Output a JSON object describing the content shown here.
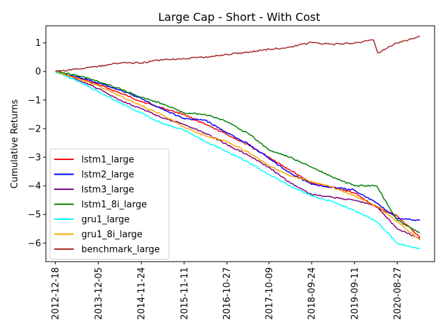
{
  "chart_data": {
    "type": "line",
    "title": "Large Cap - Short - With Cost",
    "xlabel": "",
    "ylabel": "Cumulative Returns",
    "x_tick_labels": [
      "2012-12-18",
      "2013-12-05",
      "2014-11-24",
      "2015-11-11",
      "2016-10-27",
      "2017-10-09",
      "2018-09-24",
      "2019-09-11",
      "2020-08-27"
    ],
    "x_range": [
      "2012-10-01",
      "2021-06-30"
    ],
    "ylim": [
      -6.65,
      1.6
    ],
    "y_ticks": [
      -6,
      -5,
      -4,
      -3,
      -2,
      -1,
      0,
      1
    ],
    "grid": false,
    "legend_position": "lower-left",
    "series": [
      {
        "name": "lstm1_large",
        "color": "#ff0000",
        "x": [
          "2012-12-18",
          "2013-06-01",
          "2013-12-05",
          "2014-06-01",
          "2014-11-24",
          "2015-06-01",
          "2015-11-11",
          "2016-05-01",
          "2016-10-27",
          "2017-05-01",
          "2017-10-09",
          "2018-04-01",
          "2018-09-24",
          "2019-03-15",
          "2019-09-11",
          "2020-03-10",
          "2020-08-27",
          "2021-03-01"
        ],
        "y": [
          0.0,
          -0.2,
          -0.45,
          -0.75,
          -1.05,
          -1.3,
          -1.5,
          -1.85,
          -2.2,
          -2.6,
          -3.0,
          -3.45,
          -3.9,
          -4.05,
          -4.25,
          -4.75,
          -5.05,
          -5.8
        ]
      },
      {
        "name": "lstm2_large",
        "color": "#0000ff",
        "x": [
          "2012-12-18",
          "2013-06-01",
          "2013-12-05",
          "2014-06-01",
          "2014-11-24",
          "2015-06-01",
          "2015-11-11",
          "2016-05-01",
          "2016-10-27",
          "2017-05-01",
          "2017-10-09",
          "2018-04-01",
          "2018-09-24",
          "2019-03-15",
          "2019-09-11",
          "2020-03-10",
          "2020-08-27",
          "2021-03-01"
        ],
        "y": [
          0.0,
          -0.18,
          -0.4,
          -0.65,
          -0.95,
          -1.35,
          -1.65,
          -1.7,
          -2.15,
          -2.55,
          -3.05,
          -3.55,
          -3.95,
          -4.05,
          -4.15,
          -4.6,
          -5.15,
          -5.2
        ]
      },
      {
        "name": "lstm3_large",
        "color": "#800080",
        "x": [
          "2012-12-18",
          "2013-06-01",
          "2013-12-05",
          "2014-06-01",
          "2014-11-24",
          "2015-06-01",
          "2015-11-11",
          "2016-05-01",
          "2016-10-27",
          "2017-05-01",
          "2017-10-09",
          "2018-04-01",
          "2018-09-24",
          "2019-03-15",
          "2019-09-11",
          "2020-03-10",
          "2020-08-27",
          "2021-03-01"
        ],
        "y": [
          0.0,
          -0.25,
          -0.6,
          -1.0,
          -1.3,
          -1.65,
          -1.85,
          -2.15,
          -2.55,
          -2.95,
          -3.35,
          -3.9,
          -4.3,
          -4.4,
          -4.5,
          -4.7,
          -5.5,
          -5.85
        ]
      },
      {
        "name": "lstm1_8i_large",
        "color": "#008000",
        "x": [
          "2012-12-18",
          "2013-06-01",
          "2013-12-05",
          "2014-06-01",
          "2014-11-24",
          "2015-06-01",
          "2015-11-11",
          "2016-05-01",
          "2016-10-27",
          "2017-05-01",
          "2017-10-09",
          "2018-04-01",
          "2018-09-24",
          "2019-03-15",
          "2019-09-11",
          "2020-03-10",
          "2020-08-27",
          "2021-03-01"
        ],
        "y": [
          0.0,
          -0.12,
          -0.35,
          -0.6,
          -0.9,
          -1.15,
          -1.45,
          -1.5,
          -1.75,
          -2.2,
          -2.75,
          -3.0,
          -3.35,
          -3.7,
          -4.0,
          -4.0,
          -5.2,
          -5.65
        ]
      },
      {
        "name": "gru1_large",
        "color": "#00ffff",
        "x": [
          "2012-12-18",
          "2013-06-01",
          "2013-12-05",
          "2014-06-01",
          "2014-11-24",
          "2015-06-01",
          "2015-11-11",
          "2016-05-01",
          "2016-10-27",
          "2017-05-01",
          "2017-10-09",
          "2018-04-01",
          "2018-09-24",
          "2019-03-15",
          "2019-09-11",
          "2020-03-10",
          "2020-08-27",
          "2021-03-01"
        ],
        "y": [
          0.0,
          -0.3,
          -0.7,
          -1.1,
          -1.45,
          -1.85,
          -2.05,
          -2.45,
          -2.8,
          -3.2,
          -3.6,
          -4.0,
          -4.35,
          -4.55,
          -4.85,
          -5.25,
          -6.0,
          -6.2
        ]
      },
      {
        "name": "gru1_8i_large",
        "color": "#ffa500",
        "x": [
          "2012-12-18",
          "2013-06-01",
          "2013-12-05",
          "2014-06-01",
          "2014-11-24",
          "2015-06-01",
          "2015-11-11",
          "2016-05-01",
          "2016-10-27",
          "2017-05-01",
          "2017-10-09",
          "2018-04-01",
          "2018-09-24",
          "2019-03-15",
          "2019-09-11",
          "2020-03-10",
          "2020-08-27",
          "2021-03-01"
        ],
        "y": [
          0.0,
          -0.22,
          -0.5,
          -0.85,
          -1.2,
          -1.55,
          -1.95,
          -2.25,
          -2.45,
          -2.85,
          -3.3,
          -3.65,
          -3.85,
          -4.05,
          -4.35,
          -4.7,
          -5.25,
          -5.9
        ]
      },
      {
        "name": "benchmark_large",
        "color": "#a52a2a",
        "x": [
          "2012-12-18",
          "2013-06-01",
          "2013-12-05",
          "2014-06-01",
          "2014-11-24",
          "2015-06-01",
          "2015-11-11",
          "2016-05-01",
          "2016-10-27",
          "2017-05-01",
          "2017-10-09",
          "2018-04-01",
          "2018-09-24",
          "2019-03-15",
          "2019-09-11",
          "2020-02-15",
          "2020-03-20",
          "2020-08-27",
          "2021-03-01"
        ],
        "y": [
          0.0,
          0.08,
          0.18,
          0.3,
          0.3,
          0.42,
          0.45,
          0.5,
          0.6,
          0.68,
          0.78,
          0.85,
          1.02,
          0.95,
          1.0,
          1.1,
          0.65,
          1.0,
          1.22
        ]
      }
    ]
  }
}
